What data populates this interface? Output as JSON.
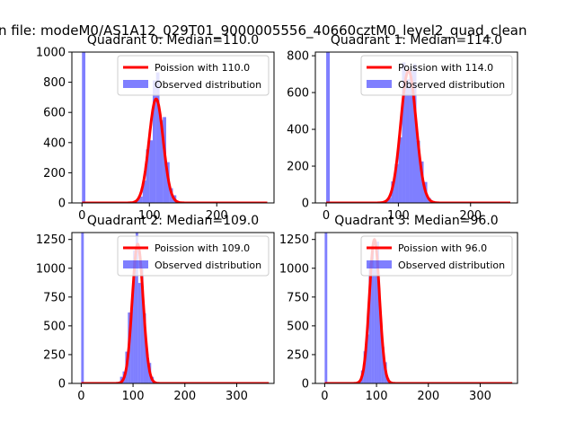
{
  "figure": {
    "suptitle": "n file: modeM0/AS1A12_029T01_9000005556_40660cztM0_level2_quad_clean"
  },
  "colors": {
    "poisson": "#ff0000",
    "observed": "#0000ff",
    "axes": "#000000"
  },
  "chart_data": [
    {
      "type": "bar",
      "quadrant": 0,
      "title": "Quadrant 0: Median=110.0",
      "xlim": [
        -15,
        285
      ],
      "ylim": [
        0,
        1000
      ],
      "xticks": [
        0,
        100,
        200
      ],
      "yticks": [
        0,
        200,
        400,
        600,
        800,
        1000
      ],
      "legend_position": "top-right",
      "series": [
        {
          "name": "Poission with 110.0",
          "kind": "line",
          "mean": 110.0,
          "peak": 690
        },
        {
          "name": "Observed distribution",
          "kind": "bar",
          "mean": 112,
          "sigma": 10.5,
          "peak": 800,
          "zero_bar": 1000
        }
      ]
    },
    {
      "type": "bar",
      "quadrant": 1,
      "title": "Quadrant 1: Median=114.0",
      "xlim": [
        -15,
        265
      ],
      "ylim": [
        0,
        820
      ],
      "xticks": [
        0,
        100,
        200
      ],
      "yticks": [
        0,
        200,
        400,
        600,
        800
      ],
      "legend_position": "top-right",
      "series": [
        {
          "name": "Poission with 114.0",
          "kind": "line",
          "mean": 114.0,
          "peak": 720
        },
        {
          "name": "Observed distribution",
          "kind": "bar",
          "mean": 115,
          "sigma": 11,
          "peak": 790,
          "zero_bar": 820
        }
      ]
    },
    {
      "type": "bar",
      "quadrant": 2,
      "title": "Quadrant 2: Median=109.0",
      "xlim": [
        -18,
        372
      ],
      "ylim": [
        0,
        1310
      ],
      "xticks": [
        0,
        100,
        200,
        300
      ],
      "yticks": [
        0,
        250,
        500,
        750,
        1000,
        1250
      ],
      "legend_position": "top-right",
      "series": [
        {
          "name": "Poission with 109.0",
          "kind": "line",
          "mean": 109.0,
          "peak": 1210
        },
        {
          "name": "Observed distribution",
          "kind": "bar",
          "mean": 108,
          "sigma": 12,
          "peak": 1200,
          "zero_bar": 1310
        }
      ]
    },
    {
      "type": "bar",
      "quadrant": 3,
      "title": "Quadrant 3: Median=96.0",
      "xlim": [
        -18,
        372
      ],
      "ylim": [
        0,
        1310
      ],
      "xticks": [
        0,
        100,
        200,
        300
      ],
      "yticks": [
        0,
        250,
        500,
        750,
        1000,
        1250
      ],
      "legend_position": "top-right",
      "series": [
        {
          "name": "Poission with 96.0",
          "kind": "line",
          "mean": 96.0,
          "peak": 1250
        },
        {
          "name": "Observed distribution",
          "kind": "bar",
          "mean": 96,
          "sigma": 10.5,
          "peak": 1230,
          "zero_bar": 1310
        }
      ]
    }
  ]
}
